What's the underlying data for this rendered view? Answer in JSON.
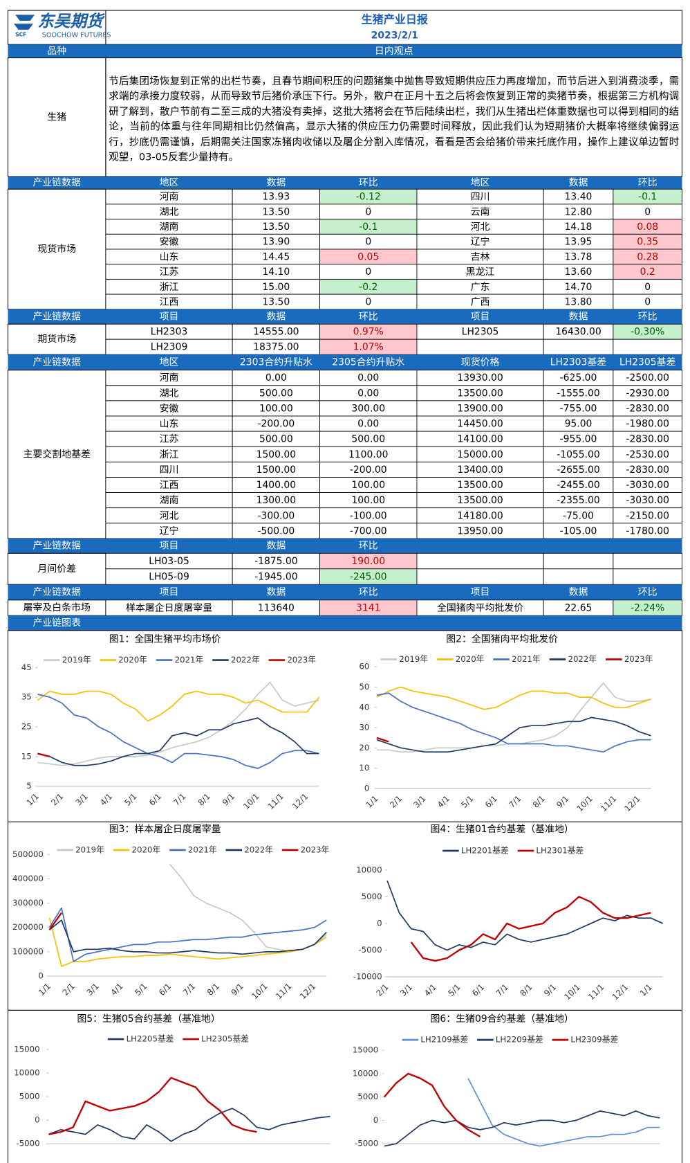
{
  "header": {
    "logo": "东吴期货",
    "logo_sub": "SOOCHOW FUTURES",
    "title": "生猪产业日报",
    "date": "2023/2/1"
  },
  "view": {
    "headers": [
      "品种",
      "日内观点"
    ],
    "name": "生猪",
    "text": "节后集团场恢复到正常的出栏节奏，且春节期间积压的问题猪集中抛售导致短期供应压力再度增加，而节后进入到消费淡季，需求端的承接力度较弱，从而导致节后猪价承压下行。另外，散户在正月十五之后将会恢复到正常的卖猪节奏，根据第三方机构调研了解到，散户节前有二至三成的大猪没有卖掉，这批大猪将会在节后陆续出栏，我们从生猪出栏体重数据也可以得到相同的结论，当前的体重与往年同期相比仍然偏高，显示大猪的供应压力仍需要时间释放，因此我们认为短期猪价大概率将继续偏弱运行，抄底仍需谨慎，后期需关注国家冻猪肉收储以及屠企分割入库情况，看看是否会给猪价带来托底作用，操作上建议单边暂时观望，03-05反套少量持有。"
  },
  "spot": {
    "headers": [
      "产业链数据",
      "地区",
      "数据",
      "环比",
      "地区",
      "数据",
      "环比"
    ],
    "label": "现货市场",
    "rows": [
      [
        "河南",
        "13.93",
        "-0.12",
        "四川",
        "13.40",
        "-0.1"
      ],
      [
        "湖北",
        "13.50",
        "0",
        "云南",
        "12.80",
        "0"
      ],
      [
        "湖南",
        "13.50",
        "-0.1",
        "河北",
        "14.18",
        "0.08"
      ],
      [
        "安徽",
        "13.90",
        "0",
        "辽宁",
        "13.95",
        "0.35"
      ],
      [
        "山东",
        "14.45",
        "0.05",
        "吉林",
        "13.78",
        "0.28"
      ],
      [
        "江苏",
        "14.10",
        "0",
        "黑龙江",
        "13.60",
        "0.2"
      ],
      [
        "浙江",
        "15.00",
        "-0.2",
        "广东",
        "14.70",
        "0"
      ],
      [
        "江西",
        "13.50",
        "0",
        "广西",
        "13.80",
        "0"
      ]
    ]
  },
  "futures": {
    "headers": [
      "产业链数据",
      "项目",
      "数据",
      "环比",
      "项目",
      "数据",
      "环比"
    ],
    "label": "期货市场",
    "rows": [
      [
        "LH2303",
        "14555.00",
        "0.97%",
        "LH2305",
        "16430.00",
        "-0.30%"
      ],
      [
        "LH2309",
        "18375.00",
        "1.07%"
      ]
    ]
  },
  "basis": {
    "headers": [
      "产业链数据",
      "地区",
      "2303合约升贴水",
      "2305合约升贴水",
      "现货价格",
      "LH2303基差",
      "LH2305基差"
    ],
    "label": "主要交割地基差",
    "rows": [
      [
        "河南",
        "0.00",
        "0.00",
        "13930.00",
        "-625.00",
        "-2500.00"
      ],
      [
        "湖北",
        "500.00",
        "0.00",
        "13500.00",
        "-1555.00",
        "-2930.00"
      ],
      [
        "安徽",
        "100.00",
        "300.00",
        "13900.00",
        "-755.00",
        "-2830.00"
      ],
      [
        "山东",
        "-200.00",
        "0.00",
        "14450.00",
        "95.00",
        "-1980.00"
      ],
      [
        "江苏",
        "500.00",
        "500.00",
        "14100.00",
        "-955.00",
        "-2830.00"
      ],
      [
        "浙江",
        "1500.00",
        "1100.00",
        "15000.00",
        "-1055.00",
        "-2530.00"
      ],
      [
        "四川",
        "1500.00",
        "-200.00",
        "13400.00",
        "-2655.00",
        "-2830.00"
      ],
      [
        "江西",
        "1400.00",
        "100.00",
        "13500.00",
        "-2455.00",
        "-3030.00"
      ],
      [
        "湖南",
        "1300.00",
        "100.00",
        "13500.00",
        "-2355.00",
        "-3030.00"
      ],
      [
        "河北",
        "-300.00",
        "-100.00",
        "14180.00",
        "-75.00",
        "-2150.00"
      ],
      [
        "辽宁",
        "-500.00",
        "-700.00",
        "13950.00",
        "-105.00",
        "-1780.00"
      ]
    ]
  },
  "spread": {
    "headers": [
      "产业链数据",
      "项目",
      "数据",
      "环比"
    ],
    "label": "月间价差",
    "rows": [
      [
        "LH03-05",
        "-1875.00",
        "190.00"
      ],
      [
        "LH05-09",
        "-1945.00",
        "-245.00"
      ]
    ]
  },
  "slaughter": {
    "headers": [
      "产业链数据",
      "项目",
      "数据",
      "环比",
      "项目",
      "数据",
      "环比"
    ],
    "label": "屠宰及白条市场",
    "rows": [
      [
        "样本屠企日度屠宰量",
        "113640",
        "3141",
        "全国猪肉平均批发价",
        "22.65",
        "-2.24%"
      ]
    ]
  },
  "charts_header": "产业链图表",
  "chart_data": [
    {
      "type": "line",
      "title": "图1：全国生猪平均市场价",
      "categories": [
        "1/1",
        null,
        "2/1",
        null,
        "3/1",
        null,
        "4/1",
        null,
        "5/1",
        null,
        "6/1",
        null,
        "7/1",
        null,
        "8/1",
        null,
        "9/1",
        null,
        "10/1",
        null,
        "11/1",
        null,
        "12/1",
        null
      ],
      "ylim": [
        5,
        45
      ],
      "yticks": [
        5,
        15,
        25,
        35,
        45
      ],
      "legend": "top",
      "series": [
        {
          "name": "2019年",
          "color": "#c8c8c8",
          "values": [
            13,
            12.5,
            12,
            12.5,
            13.5,
            14.5,
            15,
            15,
            15,
            15.5,
            16.5,
            18,
            19,
            20,
            21.5,
            24,
            27,
            31,
            36,
            40,
            34,
            32,
            33,
            34
          ]
        },
        {
          "name": "2020年",
          "color": "#f5c000",
          "values": [
            34,
            37,
            36,
            36,
            37,
            37,
            36,
            33,
            31,
            27,
            29,
            32,
            36,
            37,
            36,
            36,
            35,
            33,
            34,
            32,
            30,
            30,
            30,
            35
          ]
        },
        {
          "name": "2021年",
          "color": "#4472c4",
          "values": [
            36,
            35,
            33,
            29,
            28,
            25,
            23,
            20,
            18,
            16,
            15,
            13,
            16,
            16,
            15.5,
            15,
            14,
            12,
            11,
            13,
            16,
            17,
            17,
            16
          ]
        },
        {
          "name": "2022年",
          "color": "#1f3864",
          "values": [
            16,
            15,
            13,
            12,
            12,
            12.5,
            13.5,
            15,
            16,
            16,
            17,
            22,
            23,
            22,
            24,
            24,
            26,
            27,
            28,
            25,
            23,
            20,
            16,
            16
          ]
        },
        {
          "name": "2023年",
          "color": "#c00000",
          "values": [
            16,
            15,
            null,
            null,
            null,
            null,
            null,
            null,
            null,
            null,
            null,
            null,
            null,
            null,
            null,
            null,
            null,
            null,
            null,
            null,
            null,
            null,
            null,
            null
          ]
        }
      ]
    },
    {
      "type": "line",
      "title": "图2：全国猪肉平均批发价",
      "categories": [
        "1/1",
        null,
        "2/1",
        null,
        "3/1",
        null,
        "4/1",
        null,
        "5/1",
        null,
        "6/1",
        null,
        "7/1",
        null,
        "8/1",
        null,
        "9/1",
        null,
        "10/1",
        null,
        "11/1",
        null,
        "12/1",
        null
      ],
      "ylim": [
        0,
        60
      ],
      "yticks": [
        0,
        10,
        20,
        30,
        40,
        50,
        60
      ],
      "legend": "top",
      "series": [
        {
          "name": "2019年",
          "color": "#c8c8c8",
          "values": [
            19,
            19,
            18,
            18,
            19,
            20,
            20,
            20,
            20,
            21,
            21,
            22,
            22,
            23,
            24,
            26,
            30,
            38,
            45,
            52,
            45,
            43,
            43,
            44
          ]
        },
        {
          "name": "2020年",
          "color": "#f5c000",
          "values": [
            45,
            48,
            50,
            48,
            47,
            46,
            45,
            43,
            41,
            39,
            40,
            43,
            46,
            48,
            48,
            47,
            47,
            45,
            45,
            42,
            40,
            40,
            42,
            44
          ]
        },
        {
          "name": "2021年",
          "color": "#4472c4",
          "values": [
            46,
            47,
            43,
            40,
            38,
            36,
            34,
            32,
            29,
            27,
            25,
            22,
            22,
            22,
            22,
            21,
            21,
            20,
            19,
            18,
            21,
            23,
            24,
            24
          ]
        },
        {
          "name": "2022年",
          "color": "#1f3864",
          "values": [
            24,
            22,
            20,
            19,
            18,
            18,
            18,
            19,
            20,
            21,
            22,
            26,
            30,
            31,
            31,
            32,
            33,
            33,
            35,
            34,
            33,
            31,
            28,
            26
          ]
        },
        {
          "name": "2023年",
          "color": "#c00000",
          "values": [
            25,
            23,
            null,
            null,
            null,
            null,
            null,
            null,
            null,
            null,
            null,
            null,
            null,
            null,
            null,
            null,
            null,
            null,
            null,
            null,
            null,
            null,
            null,
            null
          ]
        }
      ]
    },
    {
      "type": "line",
      "title": "图3：样本屠企日度屠宰量",
      "categories": [
        "1/1",
        null,
        "2/1",
        null,
        "3/1",
        null,
        "4/1",
        null,
        "5/1",
        null,
        "6/1",
        null,
        "7/1",
        null,
        "8/1",
        null,
        "9/1",
        null,
        "10/1",
        null,
        "11/1",
        null,
        "12/1",
        null
      ],
      "ylim": [
        0,
        500000
      ],
      "yticks": [
        0,
        100000,
        200000,
        300000,
        400000,
        500000
      ],
      "legend": "top",
      "series": [
        {
          "name": "2019年",
          "color": "#c8c8c8",
          "values": [
            null,
            null,
            null,
            null,
            null,
            null,
            null,
            null,
            null,
            null,
            460000,
            400000,
            330000,
            300000,
            280000,
            260000,
            230000,
            180000,
            120000,
            110000,
            100000,
            110000,
            130000,
            170000
          ]
        },
        {
          "name": "2020年",
          "color": "#f5c000",
          "values": [
            240000,
            40000,
            60000,
            60000,
            70000,
            75000,
            80000,
            80000,
            85000,
            85000,
            90000,
            85000,
            80000,
            75000,
            70000,
            75000,
            80000,
            85000,
            90000,
            95000,
            100000,
            110000,
            130000,
            160000
          ]
        },
        {
          "name": "2021年",
          "color": "#4472c4",
          "values": [
            200000,
            280000,
            60000,
            90000,
            100000,
            110000,
            120000,
            130000,
            130000,
            140000,
            140000,
            145000,
            150000,
            150000,
            155000,
            160000,
            160000,
            170000,
            175000,
            180000,
            185000,
            190000,
            200000,
            230000
          ]
        },
        {
          "name": "2022年",
          "color": "#1f3864",
          "values": [
            190000,
            230000,
            100000,
            110000,
            110000,
            115000,
            105000,
            100000,
            100000,
            95000,
            95000,
            100000,
            105000,
            100000,
            95000,
            95000,
            90000,
            95000,
            100000,
            100000,
            105000,
            110000,
            130000,
            180000
          ]
        },
        {
          "name": "2023年",
          "color": "#c00000",
          "values": [
            190000,
            260000,
            null,
            null,
            null,
            null,
            null,
            null,
            null,
            null,
            null,
            null,
            null,
            null,
            null,
            null,
            null,
            null,
            null,
            null,
            null,
            null,
            null,
            null
          ]
        }
      ]
    },
    {
      "type": "line",
      "title": "图4：生猪01合约基差（基准地）",
      "categories": [
        "2/1",
        null,
        "3/1",
        null,
        "4/1",
        null,
        "5/1",
        null,
        "6/1",
        null,
        "7/1",
        null,
        "8/1",
        null,
        "9/1",
        null,
        "10/1",
        null,
        "11/1",
        null,
        "12/1",
        null,
        "1/1",
        null
      ],
      "ylim": [
        -10000,
        10000
      ],
      "yticks": [
        -10000,
        -5000,
        0,
        5000,
        10000
      ],
      "legend": "top",
      "series": [
        {
          "name": "LH2201基差",
          "color": "#1f3864",
          "values": [
            8000,
            2000,
            -1000,
            -1500,
            -4000,
            -5000,
            -4000,
            -4500,
            -3500,
            -4000,
            -2000,
            -3000,
            -3500,
            -3000,
            -2500,
            -2000,
            -1000,
            0,
            1000,
            500,
            1500,
            1000,
            1000,
            0
          ]
        },
        {
          "name": "LH2301基差",
          "color": "#c00000",
          "values": [
            null,
            null,
            -3500,
            -6500,
            -7000,
            -6500,
            -5000,
            -4000,
            -2000,
            -3000,
            0,
            -1000,
            -500,
            0,
            2000,
            3000,
            5000,
            4000,
            2000,
            1000,
            1000,
            1500,
            2000,
            null
          ]
        }
      ]
    },
    {
      "type": "line",
      "title": "图5：生猪05合约基差（基准地）",
      "ylim": [
        -5000,
        15000
      ],
      "yticks": [
        -5000,
        0,
        5000,
        10000,
        15000
      ],
      "legend": "top",
      "series": [
        {
          "name": "LH2205基差",
          "color": "#1f3864",
          "values": [
            -3000,
            -2000,
            -2500,
            -3000,
            -1000,
            -2000,
            -3500,
            -4000,
            -1000,
            -2500,
            -4500,
            -3000,
            -2000,
            0,
            1500,
            2500,
            1000,
            -1500,
            -2000,
            -1000,
            -500,
            0,
            500,
            800
          ]
        },
        {
          "name": "LH2305基差",
          "color": "#c00000",
          "values": [
            -3000,
            -2500,
            -1500,
            4000,
            3000,
            2000,
            2500,
            3000,
            4000,
            6000,
            9000,
            8000,
            7000,
            4000,
            2000,
            -1000,
            -2000,
            -2500,
            null,
            null,
            null,
            null,
            null,
            null
          ]
        }
      ]
    },
    {
      "type": "line",
      "title": "图6：生猪09合约基差（基准地）",
      "ylim": [
        -5000,
        15000
      ],
      "yticks": [
        -5000,
        0,
        5000,
        10000,
        15000
      ],
      "legend": "top",
      "series": [
        {
          "name": "LH2109基差",
          "color": "#5b8fd6",
          "values": [
            null,
            null,
            null,
            null,
            null,
            null,
            null,
            9000,
            4000,
            -1000,
            -3000,
            -4000,
            -5000,
            -5500,
            -5000,
            -4500,
            -4000,
            -3500,
            -3500,
            -3000,
            -3000,
            -2500,
            -1500,
            -1500
          ]
        },
        {
          "name": "LH2209基差",
          "color": "#1f3864",
          "values": [
            -5500,
            -5000,
            -3000,
            -1000,
            0,
            -500,
            0,
            -1500,
            -2000,
            -1500,
            -500,
            -1000,
            -500,
            0,
            0,
            -500,
            0,
            1000,
            2000,
            1500,
            1000,
            2000,
            1000,
            500
          ]
        },
        {
          "name": "LH2309基差",
          "color": "#c00000",
          "values": [
            5000,
            8000,
            10000,
            9000,
            7500,
            3000,
            0,
            -2000,
            -3500,
            null,
            null,
            null,
            null,
            null,
            null,
            null,
            null,
            null,
            null,
            null,
            null,
            null,
            null,
            null
          ]
        }
      ]
    }
  ]
}
